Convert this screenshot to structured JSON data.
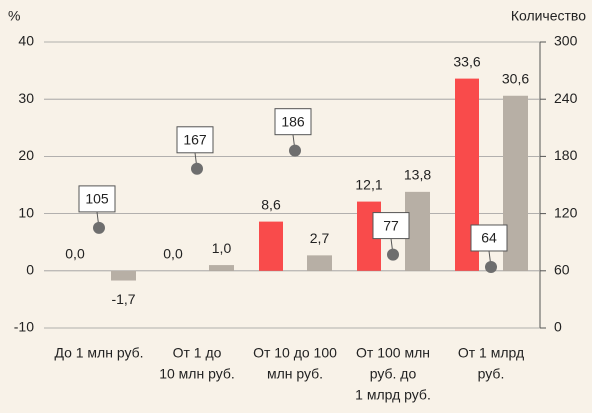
{
  "chart_data": {
    "type": "bar",
    "y_label": "%",
    "y2_label": "Количество",
    "categories": [
      [
        "До 1 млн руб."
      ],
      [
        "От 1 до",
        "10 млн руб."
      ],
      [
        "От 10 до 100",
        "млн руб."
      ],
      [
        "От 100 млн",
        "руб. до",
        "1 млрд руб."
      ],
      [
        "От 1 млрд",
        "руб."
      ]
    ],
    "ylim": [
      -10,
      40
    ],
    "yticks": [
      -10,
      0,
      10,
      20,
      30,
      40
    ],
    "y2lim": [
      0,
      300
    ],
    "y2ticks": [
      0,
      60,
      120,
      180,
      240,
      300
    ],
    "grid": true,
    "series": [
      {
        "type": "bar",
        "color": "#f94b4b",
        "values": [
          0.0,
          0.0,
          8.6,
          12.1,
          33.6
        ],
        "value_labels": [
          "0,0",
          "0,0",
          "8,6",
          "12,1",
          "33,6"
        ]
      },
      {
        "type": "bar",
        "color": "#b7afa5",
        "values": [
          -1.7,
          1.0,
          2.7,
          13.8,
          30.6
        ],
        "value_labels": [
          "-1,7",
          "1,0",
          "2,7",
          "13,8",
          "30,6"
        ]
      },
      {
        "type": "scatter",
        "axis": "y2",
        "color": "#6e6e6e",
        "values": [
          105,
          167,
          186,
          77,
          64
        ]
      }
    ]
  }
}
